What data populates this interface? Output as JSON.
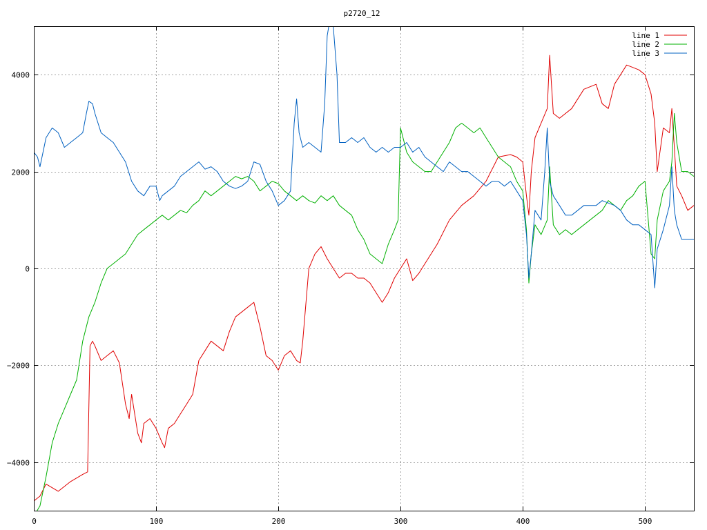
{
  "chart_data": {
    "type": "line",
    "title": "p2720_12",
    "xlabel": "",
    "ylabel": "",
    "xlim": [
      0,
      540
    ],
    "ylim": [
      -5000,
      5000
    ],
    "xticks": [
      0,
      100,
      200,
      300,
      400,
      500
    ],
    "yticks": [
      -4000,
      -2000,
      0,
      2000,
      4000
    ],
    "xtick_labels": [
      "0",
      "100",
      "200",
      "300",
      "400",
      "500"
    ],
    "ytick_labels": [
      "−4000",
      "−2000",
      "0",
      "2000",
      "4000"
    ],
    "grid": true,
    "legend_position": "top-right",
    "series": [
      {
        "name": "line 1",
        "color": "#e00000",
        "x": [
          0,
          5,
          10,
          20,
          30,
          40,
          44,
          46,
          48,
          50,
          55,
          60,
          65,
          70,
          75,
          78,
          80,
          85,
          88,
          90,
          95,
          100,
          105,
          107,
          110,
          115,
          120,
          125,
          130,
          135,
          140,
          145,
          150,
          155,
          160,
          165,
          170,
          175,
          180,
          185,
          190,
          195,
          200,
          205,
          210,
          215,
          218,
          220,
          225,
          230,
          235,
          240,
          245,
          250,
          255,
          260,
          265,
          270,
          275,
          280,
          285,
          290,
          295,
          300,
          305,
          310,
          315,
          320,
          325,
          330,
          340,
          350,
          360,
          370,
          380,
          390,
          395,
          400,
          403,
          405,
          407,
          410,
          415,
          420,
          422,
          425,
          430,
          440,
          450,
          460,
          465,
          470,
          475,
          480,
          485,
          490,
          495,
          500,
          505,
          508,
          510,
          515,
          520,
          522,
          524,
          526,
          530,
          535,
          540
        ],
        "y": [
          -4800,
          -4700,
          -4450,
          -4600,
          -4400,
          -4250,
          -4200,
          -1600,
          -1500,
          -1600,
          -1900,
          -1800,
          -1700,
          -1950,
          -2800,
          -3100,
          -2600,
          -3400,
          -3600,
          -3200,
          -3100,
          -3300,
          -3600,
          -3700,
          -3300,
          -3200,
          -3000,
          -2800,
          -2600,
          -1900,
          -1700,
          -1500,
          -1600,
          -1700,
          -1300,
          -1000,
          -900,
          -800,
          -700,
          -1200,
          -1800,
          -1900,
          -2100,
          -1800,
          -1700,
          -1900,
          -1950,
          -1500,
          0,
          300,
          450,
          200,
          0,
          -200,
          -100,
          -100,
          -200,
          -200,
          -300,
          -500,
          -700,
          -500,
          -200,
          0,
          200,
          -250,
          -100,
          100,
          300,
          500,
          1000,
          1300,
          1500,
          1800,
          2300,
          2350,
          2300,
          2200,
          1500,
          1100,
          2000,
          2700,
          3000,
          3300,
          4400,
          3200,
          3100,
          3300,
          3700,
          3800,
          3400,
          3300,
          3800,
          4000,
          4200,
          4150,
          4100,
          4000,
          3600,
          3000,
          2000,
          2900,
          2800,
          3300,
          2500,
          1700,
          1500,
          1200,
          1300
        ]
      },
      {
        "name": "line 2",
        "color": "#00b000",
        "x": [
          0,
          5,
          10,
          15,
          20,
          25,
          30,
          35,
          40,
          45,
          50,
          55,
          60,
          65,
          70,
          75,
          80,
          85,
          90,
          95,
          100,
          105,
          110,
          115,
          120,
          125,
          130,
          135,
          140,
          145,
          150,
          155,
          160,
          165,
          170,
          175,
          180,
          185,
          190,
          195,
          200,
          205,
          210,
          215,
          220,
          225,
          230,
          235,
          240,
          245,
          250,
          255,
          260,
          265,
          270,
          275,
          280,
          285,
          290,
          295,
          298,
          300,
          302,
          305,
          310,
          315,
          320,
          325,
          330,
          335,
          340,
          345,
          350,
          355,
          360,
          365,
          370,
          375,
          380,
          385,
          390,
          395,
          400,
          403,
          405,
          407,
          410,
          415,
          420,
          422,
          425,
          430,
          435,
          440,
          445,
          450,
          455,
          460,
          465,
          470,
          475,
          480,
          485,
          490,
          495,
          500,
          505,
          508,
          510,
          515,
          520,
          522,
          524,
          526,
          530,
          535,
          540
        ],
        "y": [
          -5200,
          -4900,
          -4300,
          -3600,
          -3200,
          -2900,
          -2600,
          -2300,
          -1500,
          -1000,
          -700,
          -300,
          0,
          100,
          200,
          300,
          500,
          700,
          800,
          900,
          1000,
          1100,
          1000,
          1100,
          1200,
          1150,
          1300,
          1400,
          1600,
          1500,
          1600,
          1700,
          1800,
          1900,
          1850,
          1900,
          1800,
          1600,
          1700,
          1800,
          1750,
          1600,
          1500,
          1400,
          1500,
          1400,
          1350,
          1500,
          1400,
          1500,
          1300,
          1200,
          1100,
          800,
          600,
          300,
          200,
          100,
          500,
          800,
          1000,
          2900,
          2700,
          2400,
          2200,
          2100,
          2000,
          2000,
          2200,
          2400,
          2600,
          2900,
          3000,
          2900,
          2800,
          2900,
          2700,
          2500,
          2300,
          2200,
          2100,
          1800,
          1600,
          800,
          -300,
          300,
          900,
          700,
          1000,
          2100,
          900,
          700,
          800,
          700,
          800,
          900,
          1000,
          1100,
          1200,
          1400,
          1300,
          1200,
          1400,
          1500,
          1700,
          1800,
          300,
          200,
          1000,
          1600,
          1800,
          2200,
          3200,
          2600,
          2000,
          2000,
          1900
        ]
      },
      {
        "name": "line 3",
        "color": "#0060c0",
        "x": [
          0,
          3,
          5,
          10,
          15,
          20,
          25,
          30,
          35,
          40,
          43,
          45,
          48,
          50,
          55,
          60,
          65,
          70,
          75,
          80,
          85,
          90,
          95,
          100,
          103,
          105,
          110,
          115,
          120,
          125,
          130,
          135,
          140,
          145,
          150,
          155,
          160,
          165,
          170,
          175,
          180,
          185,
          190,
          195,
          200,
          205,
          210,
          213,
          215,
          217,
          220,
          225,
          230,
          235,
          238,
          240,
          242,
          245,
          248,
          250,
          255,
          260,
          265,
          270,
          275,
          280,
          285,
          290,
          295,
          300,
          305,
          310,
          315,
          320,
          325,
          330,
          335,
          340,
          345,
          350,
          355,
          360,
          365,
          370,
          375,
          380,
          385,
          390,
          395,
          400,
          403,
          405,
          407,
          410,
          415,
          418,
          420,
          422,
          425,
          430,
          435,
          440,
          445,
          450,
          455,
          460,
          465,
          470,
          475,
          480,
          485,
          490,
          495,
          500,
          505,
          508,
          510,
          515,
          520,
          522,
          524,
          526,
          530,
          535,
          540
        ],
        "y": [
          2400,
          2300,
          2100,
          2700,
          2900,
          2800,
          2500,
          2600,
          2700,
          2800,
          3200,
          3450,
          3400,
          3200,
          2800,
          2700,
          2600,
          2400,
          2200,
          1800,
          1600,
          1500,
          1700,
          1700,
          1400,
          1500,
          1600,
          1700,
          1900,
          2000,
          2100,
          2200,
          2050,
          2100,
          2000,
          1800,
          1700,
          1650,
          1700,
          1800,
          2200,
          2150,
          1800,
          1600,
          1300,
          1400,
          1600,
          3000,
          3500,
          2800,
          2500,
          2600,
          2500,
          2400,
          3400,
          4800,
          5100,
          5000,
          4000,
          2600,
          2600,
          2700,
          2600,
          2700,
          2500,
          2400,
          2500,
          2400,
          2500,
          2500,
          2600,
          2400,
          2500,
          2300,
          2200,
          2100,
          2000,
          2200,
          2100,
          2000,
          2000,
          1900,
          1800,
          1700,
          1800,
          1800,
          1700,
          1800,
          1600,
          1400,
          700,
          -200,
          300,
          1200,
          1000,
          2000,
          2900,
          1800,
          1500,
          1300,
          1100,
          1100,
          1200,
          1300,
          1300,
          1300,
          1400,
          1350,
          1300,
          1200,
          1000,
          900,
          900,
          800,
          700,
          -400,
          400,
          800,
          1300,
          2100,
          1200,
          900,
          600,
          600,
          600
        ]
      }
    ]
  }
}
